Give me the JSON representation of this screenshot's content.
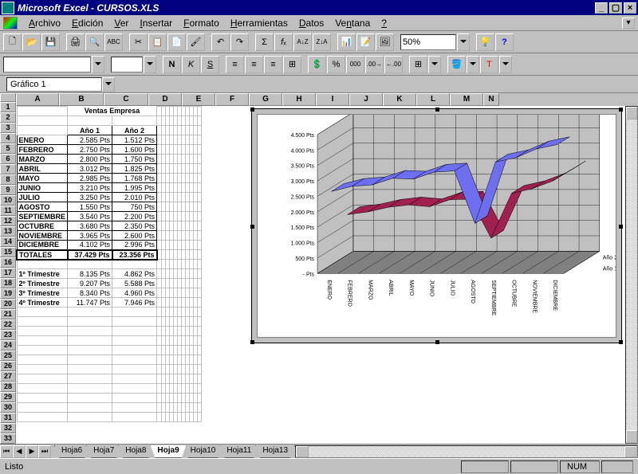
{
  "window": {
    "title": "Microsoft Excel - CURSOS.XLS"
  },
  "menu": {
    "items": [
      "Archivo",
      "Edición",
      "Ver",
      "Insertar",
      "Formato",
      "Herramientas",
      "Datos",
      "Ventana",
      "?"
    ]
  },
  "toolbar": {
    "zoom": "50%"
  },
  "namebox": "Gráfico 1",
  "columns": [
    "A",
    "B",
    "C",
    "D",
    "E",
    "F",
    "G",
    "H",
    "I",
    "J",
    "K",
    "L",
    "M",
    "N"
  ],
  "sheet": {
    "title": "Ventas Empresa",
    "year_headers": [
      "Año 1",
      "Año 2"
    ],
    "rows": [
      {
        "label": "ENERO",
        "v1": "2.585 Pts",
        "v2": "1.512 Pts"
      },
      {
        "label": "FEBRERO",
        "v1": "2.750 Pts",
        "v2": "1.600 Pts"
      },
      {
        "label": "MARZO",
        "v1": "2.800 Pts",
        "v2": "1.750 Pts"
      },
      {
        "label": "ABRIL",
        "v1": "3.012 Pts",
        "v2": "1.825 Pts"
      },
      {
        "label": "MAYO",
        "v1": "2.985 Pts",
        "v2": "1.768 Pts"
      },
      {
        "label": "JUNIO",
        "v1": "3.210 Pts",
        "v2": "1.995 Pts"
      },
      {
        "label": "JULIO",
        "v1": "3.250 Pts",
        "v2": "2.010 Pts"
      },
      {
        "label": "AGOSTO",
        "v1": "1.550 Pts",
        "v2": "750 Pts"
      },
      {
        "label": "SEPTIEMBRE",
        "v1": "3.540 Pts",
        "v2": "2.200 Pts"
      },
      {
        "label": "OCTUBRE",
        "v1": "3.680 Pts",
        "v2": "2.350 Pts"
      },
      {
        "label": "NOVIEMBRE",
        "v1": "3.965 Pts",
        "v2": "2.600 Pts"
      },
      {
        "label": "DICIEMBRE",
        "v1": "4.102 Pts",
        "v2": "2.996 Pts"
      }
    ],
    "totals": {
      "label": "TOTALES",
      "v1": "37.429 Pts",
      "v2": "23.356 Pts"
    },
    "trimesters": [
      {
        "label": "1º Trimestre",
        "v1": "8.135 Pts",
        "v2": "4.862 Pts"
      },
      {
        "label": "2º Trimestre",
        "v1": "9.207 Pts",
        "v2": "5.588 Pts"
      },
      {
        "label": "3º Trimestre",
        "v1": "8.340 Pts",
        "v2": "4.960 Pts"
      },
      {
        "label": "4º Trimestre",
        "v1": "11.747 Pts",
        "v2": "7.946 Pts"
      }
    ]
  },
  "chart": {
    "type": "3d-ribbon-line",
    "categories": [
      "ENERO",
      "FEBRERO",
      "MARZO",
      "ABRIL",
      "MAYO",
      "JUNIO",
      "JULIO",
      "AGOSTO",
      "SEPTIEMBRE",
      "OCTUBRE",
      "NOVIEMBRE",
      "DICIEMBRE"
    ],
    "series": [
      {
        "name": "Año 1",
        "color": "#6e6ef0",
        "values": [
          2585,
          2750,
          2800,
          3012,
          2985,
          3210,
          3250,
          1550,
          3540,
          3680,
          3965,
          4102
        ]
      },
      {
        "name": "Año 2",
        "color": "#a02050",
        "values": [
          1512,
          1600,
          1750,
          1825,
          1768,
          1995,
          2010,
          750,
          2200,
          2350,
          2600,
          2996
        ]
      }
    ],
    "ylim": [
      0,
      4500
    ],
    "ytick_step": 500,
    "ytick_suffix": " Pts",
    "ytick_labels": [
      "- Pts",
      "500 Pts",
      "1.000 Pts",
      "1.500 Pts",
      "2.000 Pts",
      "2.500 Pts",
      "3.000 Pts",
      "3.500 Pts",
      "4.000 Pts",
      "4.500 Pts"
    ],
    "wall_color": "#c0c0c0",
    "floor_color": "#808080",
    "grid_color": "#000000",
    "background_color": "#ffffff",
    "label_fontsize": 7
  },
  "tabs": {
    "list": [
      "Hoja6",
      "Hoja7",
      "Hoja8",
      "Hoja9",
      "Hoja10",
      "Hoja11",
      "Hoja13"
    ],
    "active": "Hoja9"
  },
  "status": {
    "ready": "Listo",
    "num": "NUM"
  }
}
